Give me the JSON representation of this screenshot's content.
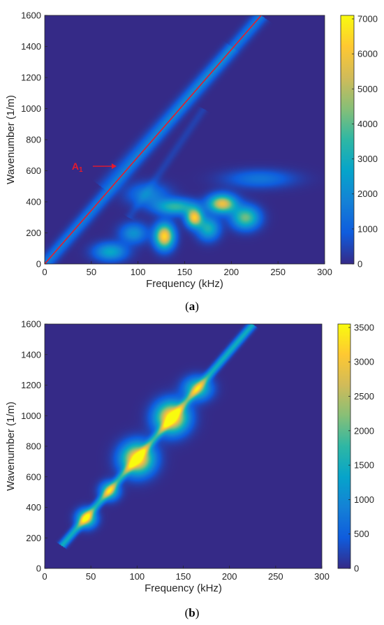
{
  "chart_data": [
    {
      "type": "heatmap",
      "panel_label": "a",
      "xlabel": "Frequency (kHz)",
      "ylabel": "Wavenumber (1/m)",
      "xlim": [
        0,
        300
      ],
      "ylim": [
        0,
        1600
      ],
      "x_ticks": [
        0,
        50,
        100,
        150,
        200,
        250,
        300
      ],
      "y_ticks": [
        0,
        200,
        400,
        600,
        800,
        1000,
        1200,
        1400,
        1600
      ],
      "colorbar": {
        "min": 0,
        "max": 7100,
        "ticks": [
          0,
          1000,
          2000,
          3000,
          4000,
          5000,
          6000,
          7000
        ]
      },
      "colormap": [
        "#352a87",
        "#0f5cdd",
        "#1481d6",
        "#06a4ca",
        "#2eb7a4",
        "#87bf77",
        "#d1bb59",
        "#fec832",
        "#f9fb0e"
      ],
      "annotation": {
        "text": "A",
        "subscript": "1",
        "color": "#e8192c",
        "points_to": [
          80,
          620
        ]
      },
      "reference_line": {
        "from": [
          0,
          0
        ],
        "to": [
          232,
          1600
        ],
        "color": "#e8192c"
      },
      "features": [
        {
          "kind": "ridge",
          "from": [
            0,
            0
          ],
          "to": [
            232,
            1600
          ],
          "value": 1600,
          "width": 30
        },
        {
          "kind": "ridge",
          "from": [
            60,
            500
          ],
          "to": [
            200,
            1400
          ],
          "value": 500,
          "width": 30
        },
        {
          "kind": "ridge",
          "from": [
            90,
            300
          ],
          "to": [
            170,
            1000
          ],
          "value": 400,
          "width": 20
        },
        {
          "kind": "blob",
          "x": 128,
          "y": 180,
          "rx": 7,
          "ry": 55,
          "value": 6500
        },
        {
          "kind": "blob",
          "x": 160,
          "y": 300,
          "rx": 6,
          "ry": 40,
          "value": 6000
        },
        {
          "kind": "blob",
          "x": 190,
          "y": 390,
          "rx": 10,
          "ry": 40,
          "value": 5800
        },
        {
          "kind": "blob",
          "x": 215,
          "y": 300,
          "rx": 10,
          "ry": 50,
          "value": 4200
        },
        {
          "kind": "blob",
          "x": 140,
          "y": 370,
          "rx": 15,
          "ry": 35,
          "value": 3500
        },
        {
          "kind": "blob",
          "x": 175,
          "y": 230,
          "rx": 8,
          "ry": 50,
          "value": 3200
        },
        {
          "kind": "blob",
          "x": 70,
          "y": 80,
          "rx": 12,
          "ry": 40,
          "value": 2800
        },
        {
          "kind": "blob",
          "x": 95,
          "y": 200,
          "rx": 10,
          "ry": 45,
          "value": 2200
        },
        {
          "kind": "blob",
          "x": 230,
          "y": 550,
          "rx": 25,
          "ry": 40,
          "value": 1500
        },
        {
          "kind": "blob",
          "x": 110,
          "y": 450,
          "rx": 15,
          "ry": 50,
          "value": 1800
        }
      ]
    },
    {
      "type": "heatmap",
      "panel_label": "b",
      "xlabel": "Frequency (kHz)",
      "ylabel": "Wavenumber (1/m)",
      "xlim": [
        0,
        300
      ],
      "ylim": [
        0,
        1600
      ],
      "x_ticks": [
        0,
        50,
        100,
        150,
        200,
        250,
        300
      ],
      "y_ticks": [
        0,
        200,
        400,
        600,
        800,
        1000,
        1200,
        1400,
        1600
      ],
      "colorbar": {
        "min": 0,
        "max": 3550,
        "ticks": [
          0,
          500,
          1000,
          1500,
          2000,
          2500,
          3000,
          3500
        ]
      },
      "colormap": [
        "#352a87",
        "#0f5cdd",
        "#1481d6",
        "#06a4ca",
        "#2eb7a4",
        "#87bf77",
        "#d1bb59",
        "#fec832",
        "#f9fb0e"
      ],
      "features": [
        {
          "kind": "ridge",
          "from": [
            18,
            150
          ],
          "to": [
            225,
            1600
          ],
          "value": 1500,
          "width": 18
        },
        {
          "kind": "blob",
          "x": 100,
          "y": 720,
          "rx": 12,
          "ry": 70,
          "value": 3400
        },
        {
          "kind": "blob",
          "x": 137,
          "y": 990,
          "rx": 12,
          "ry": 70,
          "value": 3500
        },
        {
          "kind": "blob",
          "x": 45,
          "y": 330,
          "rx": 7,
          "ry": 40,
          "value": 2600
        },
        {
          "kind": "blob",
          "x": 165,
          "y": 1180,
          "rx": 10,
          "ry": 50,
          "value": 2000
        },
        {
          "kind": "blob",
          "x": 70,
          "y": 510,
          "rx": 7,
          "ry": 40,
          "value": 2000
        }
      ]
    }
  ]
}
